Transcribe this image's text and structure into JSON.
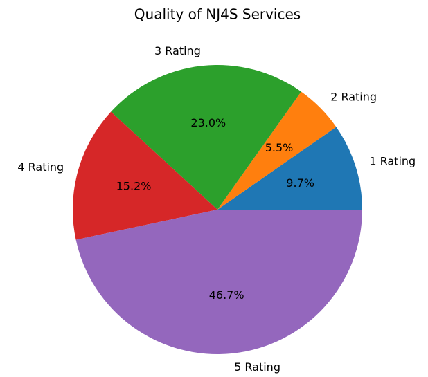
{
  "chart_data": {
    "type": "pie",
    "title": "Quality of NJ4S Services",
    "categories": [
      "1 Rating",
      "2 Rating",
      "3 Rating",
      "4 Rating",
      "5 Rating"
    ],
    "values": [
      9.7,
      5.5,
      23.0,
      15.2,
      46.7
    ],
    "value_labels": [
      "9.7%",
      "5.5%",
      "23.0%",
      "15.2%",
      "46.7%"
    ],
    "colors": [
      "#1f77b4",
      "#ff7f0e",
      "#2ca02c",
      "#d62728",
      "#9467bd"
    ]
  }
}
